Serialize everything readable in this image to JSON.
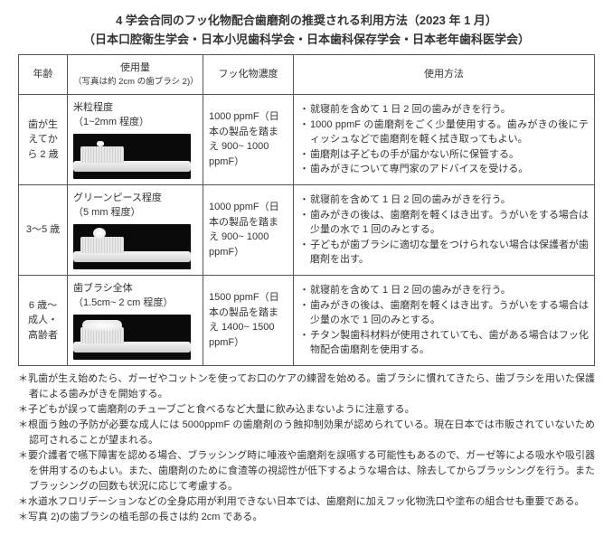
{
  "title": "4 学会合同のフッ化物配合歯磨剤の推奨される利用方法（2023 年 1 月）",
  "subtitle": "（日本口腔衛生学会・日本小児歯科学会・日本歯科保存学会・日本老年歯科医学会）",
  "headers": {
    "age": "年齢",
    "amount": "使用量",
    "amount_sub": "（写真は約 2cm の歯ブラシ 2)）",
    "conc": "フッ化物濃度",
    "usage": "使用方法"
  },
  "rows": [
    {
      "age": "歯が生えてから 2 歳",
      "amount_title": "米粒程度",
      "amount_sub": "（1~2mm 程度）",
      "paste_class": "rice",
      "conc": "1000 ppmF（日本の製品を踏まえ 900~ 1000 ppmF）",
      "usage": [
        "就寝前を含めて 1 日 2 回の歯みがきを行う。",
        "1000 ppmF の歯磨剤をごく少量使用する。歯みがきの後にティッシュなどで歯磨剤を軽く拭き取ってもよい。",
        "歯磨剤は子どもの手が届かない所に保管する。",
        "歯みがきについて専門家のアドバイスを受ける。"
      ]
    },
    {
      "age": "3～5 歳",
      "amount_title": "グリーンピース程度",
      "amount_sub": "（5 mm 程度）",
      "paste_class": "pea",
      "conc": "1000 ppmF（日本の製品を踏まえ 900~ 1000 ppmF）",
      "usage": [
        "就寝前を含めて 1 日 2 回の歯みがきを行う。",
        "歯みがきの後は、歯磨剤を軽くはき出す。うがいをする場合は少量の水で 1 回のみとする。",
        "子どもが歯ブラシに適切な量をつけられない場合は保護者が歯磨剤を出す。"
      ]
    },
    {
      "age": "6 歳～成人・高齢者",
      "amount_title": "歯ブラシ全体",
      "amount_sub": "（1.5cm~ 2 cm 程度）",
      "paste_class": "full",
      "conc": "1500 ppmF（日本の製品を踏まえ 1400~ 1500 ppmF）",
      "usage": [
        "就寝前を含めて 1 日 2 回の歯みがきを行う。",
        "歯みがきの後は、歯磨剤を軽くはき出す。うがいをする場合は少量の水で 1 回のみとする。",
        "チタン製歯科材料が使用されていても、歯がある場合はフッ化物配合歯磨剤を使用する。"
      ]
    }
  ],
  "notes": [
    "＊乳歯が生え始めたら、ガーゼやコットンを使ってお口のケアの練習を始める。歯ブラシに慣れてきたら、歯ブラシを用いた保護者による歯みがきを開始する。",
    "＊子どもが誤って歯磨剤のチューブごと食べるなど大量に飲み込まないように注意する。",
    "＊根面う蝕の予防が必要な成人には 5000ppmF の歯磨剤のう蝕抑制効果が認められている。現在日本では市販されていないため認可されることが望まれる。",
    "＊要介護者で嚥下障害を認める場合、ブラッシング時に唾液や歯磨剤を誤嚥する可能性もあるので、ガーゼ等による吸水や吸引器を併用するのもよい。また、歯磨剤のために食渣等の視認性が低下するような場合は、除去してからブラッシングを行う。またブラッシングの回数も状況に応じて考慮する。",
    "＊水道水フロリデーションなどの全身応用が利用できない日本では、歯磨剤に加えフッ化物洗口や塗布の組合せも重要である。",
    "＊写真 2)の歯ブラシの植毛部の長さは約 2cm である。"
  ]
}
